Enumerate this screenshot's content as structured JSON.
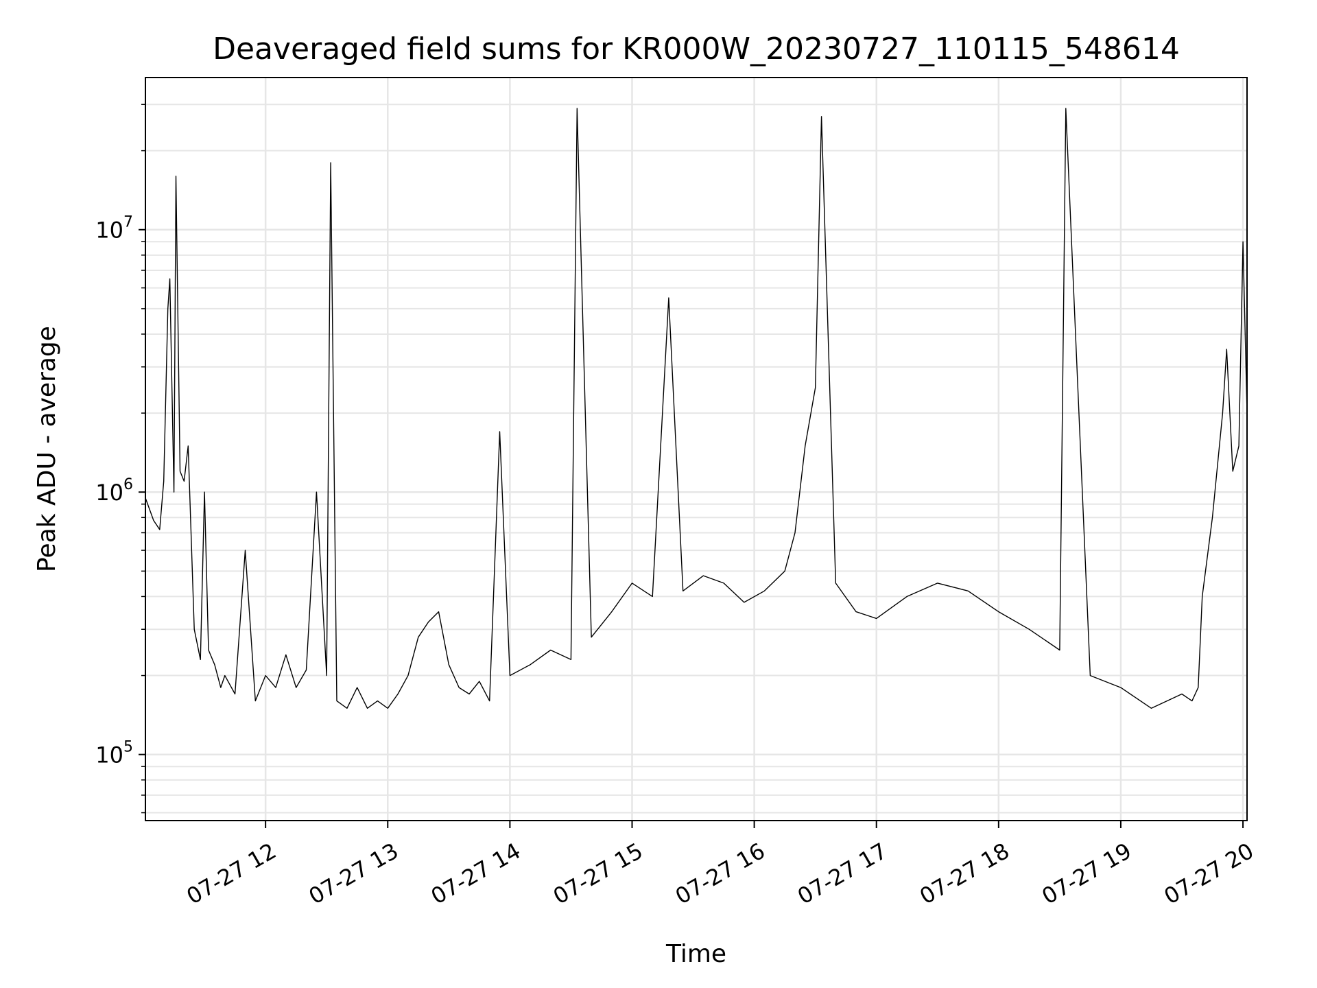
{
  "chart_data": {
    "type": "line",
    "title": "Deaveraged field sums for KR000W_20230727_110115_548614",
    "xlabel": "Time",
    "ylabel": "Peak ADU - average",
    "yscale": "log",
    "grid": true,
    "line_color": "#000000",
    "grid_color": "#e6e6e6",
    "xlim": [
      "2023-07-27 11:01",
      "2023-07-27 20:02"
    ],
    "ylim": [
      56000,
      38000000
    ],
    "x_ticks": [
      {
        "t": "2023-07-27 12:00",
        "label": "07-27 12"
      },
      {
        "t": "2023-07-27 13:00",
        "label": "07-27 13"
      },
      {
        "t": "2023-07-27 14:00",
        "label": "07-27 14"
      },
      {
        "t": "2023-07-27 15:00",
        "label": "07-27 15"
      },
      {
        "t": "2023-07-27 16:00",
        "label": "07-27 16"
      },
      {
        "t": "2023-07-27 17:00",
        "label": "07-27 17"
      },
      {
        "t": "2023-07-27 18:00",
        "label": "07-27 18"
      },
      {
        "t": "2023-07-27 19:00",
        "label": "07-27 19"
      },
      {
        "t": "2023-07-27 20:00",
        "label": "07-27 20"
      }
    ],
    "y_ticks": [
      {
        "value": 100000,
        "base": "10",
        "exp": "5"
      },
      {
        "value": 1000000,
        "base": "10",
        "exp": "6"
      },
      {
        "value": 10000000,
        "base": "10",
        "exp": "7"
      }
    ],
    "series": [
      {
        "x": [
          "2023-07-27 11:01",
          "2023-07-27 11:05",
          "2023-07-27 11:08",
          "2023-07-27 11:10",
          "2023-07-27 11:12",
          "2023-07-27 11:13",
          "2023-07-27 11:15",
          "2023-07-27 11:16",
          "2023-07-27 11:18",
          "2023-07-27 11:20",
          "2023-07-27 11:22",
          "2023-07-27 11:25",
          "2023-07-27 11:28",
          "2023-07-27 11:30",
          "2023-07-27 11:32",
          "2023-07-27 11:35",
          "2023-07-27 11:38",
          "2023-07-27 11:40",
          "2023-07-27 11:45",
          "2023-07-27 11:50",
          "2023-07-27 11:55",
          "2023-07-27 12:00",
          "2023-07-27 12:05",
          "2023-07-27 12:10",
          "2023-07-27 12:15",
          "2023-07-27 12:20",
          "2023-07-27 12:25",
          "2023-07-27 12:30",
          "2023-07-27 12:32",
          "2023-07-27 12:35",
          "2023-07-27 12:40",
          "2023-07-27 12:45",
          "2023-07-27 12:50",
          "2023-07-27 12:55",
          "2023-07-27 13:00",
          "2023-07-27 13:05",
          "2023-07-27 13:10",
          "2023-07-27 13:15",
          "2023-07-27 13:20",
          "2023-07-27 13:25",
          "2023-07-27 13:30",
          "2023-07-27 13:35",
          "2023-07-27 13:40",
          "2023-07-27 13:45",
          "2023-07-27 13:50",
          "2023-07-27 13:55",
          "2023-07-27 14:00",
          "2023-07-27 14:10",
          "2023-07-27 14:20",
          "2023-07-27 14:30",
          "2023-07-27 14:33",
          "2023-07-27 14:40",
          "2023-07-27 14:50",
          "2023-07-27 15:00",
          "2023-07-27 15:10",
          "2023-07-27 15:18",
          "2023-07-27 15:25",
          "2023-07-27 15:35",
          "2023-07-27 15:45",
          "2023-07-27 15:55",
          "2023-07-27 16:05",
          "2023-07-27 16:15",
          "2023-07-27 16:20",
          "2023-07-27 16:25",
          "2023-07-27 16:30",
          "2023-07-27 16:33",
          "2023-07-27 16:40",
          "2023-07-27 16:50",
          "2023-07-27 17:00",
          "2023-07-27 17:15",
          "2023-07-27 17:30",
          "2023-07-27 17:45",
          "2023-07-27 18:00",
          "2023-07-27 18:15",
          "2023-07-27 18:30",
          "2023-07-27 18:33",
          "2023-07-27 18:45",
          "2023-07-27 19:00",
          "2023-07-27 19:15",
          "2023-07-27 19:30",
          "2023-07-27 19:35",
          "2023-07-27 19:38",
          "2023-07-27 19:40",
          "2023-07-27 19:45",
          "2023-07-27 19:50",
          "2023-07-27 19:52",
          "2023-07-27 19:55",
          "2023-07-27 19:58",
          "2023-07-27 20:00",
          "2023-07-27 20:02"
        ],
        "y": [
          950000,
          780000,
          720000,
          1100000,
          5000000,
          6500000,
          1000000,
          16000000,
          1200000,
          1100000,
          1500000,
          300000,
          230000,
          1000000,
          250000,
          220000,
          180000,
          200000,
          170000,
          600000,
          160000,
          200000,
          180000,
          240000,
          180000,
          210000,
          1000000,
          200000,
          18000000,
          160000,
          150000,
          180000,
          150000,
          160000,
          150000,
          170000,
          200000,
          280000,
          320000,
          350000,
          220000,
          180000,
          170000,
          190000,
          160000,
          1700000,
          200000,
          220000,
          250000,
          230000,
          29000000,
          280000,
          350000,
          450000,
          400000,
          5500000,
          420000,
          480000,
          450000,
          380000,
          420000,
          500000,
          700000,
          1500000,
          2500000,
          27000000,
          450000,
          350000,
          330000,
          400000,
          450000,
          420000,
          350000,
          300000,
          250000,
          29000000,
          200000,
          180000,
          150000,
          170000,
          160000,
          180000,
          400000,
          800000,
          2000000,
          3500000,
          1200000,
          1500000,
          9000000,
          2000000
        ]
      }
    ]
  }
}
